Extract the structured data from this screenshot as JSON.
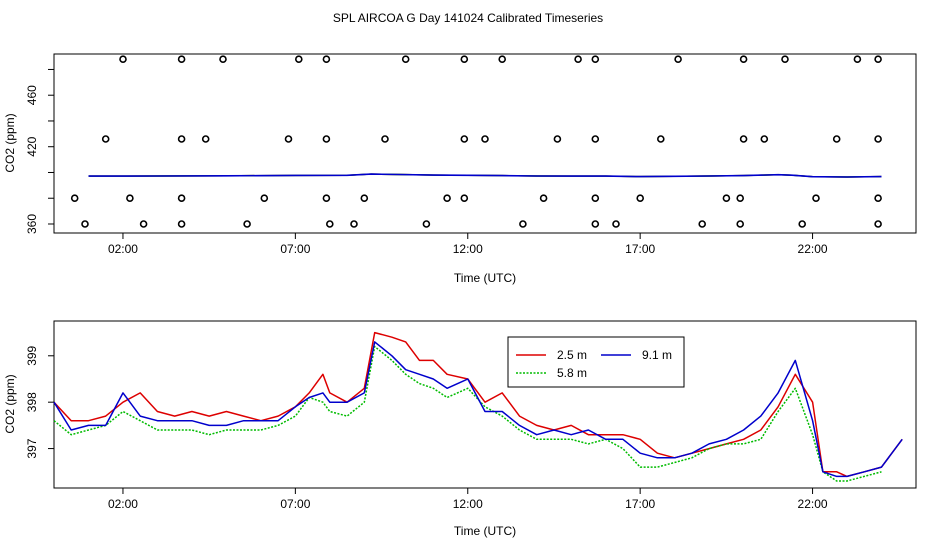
{
  "title": "SPL AIRCOA G  Day 141024  Calibrated Timeseries",
  "colors": {
    "s25": "#dd0000",
    "s58": "#00bb00",
    "s91": "#0000cc",
    "axis": "#000000"
  },
  "chart_data": [
    {
      "type": "scatter",
      "title": "",
      "xlabel": "Time (UTC)",
      "ylabel": "CO2 (ppm)",
      "xlim": [
        0,
        25
      ],
      "ylim": [
        353,
        492
      ],
      "x_ticks": [
        2,
        7,
        12,
        17,
        22
      ],
      "x_tick_labels": [
        "02:00",
        "07:00",
        "12:00",
        "17:00",
        "22:00"
      ],
      "y_ticks": [
        360,
        380,
        400,
        420,
        440,
        460,
        480
      ],
      "y_tick_labels": [
        "360",
        "",
        "",
        "420",
        "",
        "460",
        ""
      ],
      "grid": false,
      "markers_by_level": {
        "360": [
          0.9,
          2.6,
          3.7,
          5.6,
          8.0,
          8.7,
          10.8,
          13.6,
          15.7,
          16.3,
          18.8,
          19.9,
          21.7,
          23.9
        ],
        "380": [
          0.6,
          2.2,
          3.7,
          6.1,
          7.9,
          9.0,
          11.4,
          11.9,
          14.2,
          15.7,
          17.0,
          19.5,
          19.9,
          22.1,
          23.9
        ],
        "426": [
          1.5,
          3.7,
          4.4,
          6.8,
          7.9,
          9.6,
          11.9,
          12.5,
          14.6,
          15.7,
          17.6,
          20.0,
          20.6,
          22.7,
          23.9
        ],
        "488": [
          2.0,
          3.7,
          4.9,
          7.1,
          7.9,
          10.2,
          11.9,
          13.0,
          15.2,
          15.7,
          18.1,
          20.0,
          21.2,
          23.3,
          23.9
        ]
      },
      "series": [
        {
          "x": [
            1.0,
            3.0,
            5.0,
            7.0,
            8.5,
            9.2,
            10.0,
            11.0,
            12.0,
            13.0,
            14.0,
            15.0,
            16.0,
            17.0,
            18.0,
            19.0,
            20.0,
            21.0,
            21.4,
            22.0,
            23.0,
            24.0
          ],
          "values": [
            397.2,
            397.3,
            397.4,
            397.7,
            397.8,
            398.7,
            398.4,
            398.0,
            397.8,
            397.6,
            397.3,
            397.2,
            397.2,
            396.8,
            397.0,
            397.3,
            397.6,
            398.3,
            397.9,
            396.7,
            396.5,
            396.8
          ]
        }
      ]
    },
    {
      "type": "line",
      "title": "",
      "xlabel": "Time (UTC)",
      "ylabel": "CO2 (ppm)",
      "xlim": [
        0,
        25
      ],
      "ylim": [
        396.15,
        399.75
      ],
      "x_ticks": [
        2,
        7,
        12,
        17,
        22
      ],
      "x_tick_labels": [
        "02:00",
        "07:00",
        "12:00",
        "17:00",
        "22:00"
      ],
      "y_ticks": [
        397,
        398,
        399
      ],
      "y_tick_labels": [
        "397",
        "398",
        "399"
      ],
      "grid": false,
      "legend": {
        "placement": "top-center"
      },
      "series": [
        {
          "name": "2.5 m",
          "color_key": "s25",
          "x": [
            0.0,
            0.5,
            1.0,
            1.5,
            2.0,
            2.5,
            3.0,
            3.5,
            4.0,
            4.5,
            5.0,
            5.5,
            6.0,
            6.5,
            7.0,
            7.4,
            7.8,
            8.0,
            8.5,
            9.0,
            9.3,
            9.8,
            10.2,
            10.6,
            11.0,
            11.4,
            12.0,
            12.5,
            13.0,
            13.5,
            14.0,
            14.5,
            15.0,
            15.5,
            16.0,
            16.5,
            17.0,
            17.5,
            18.0,
            18.5,
            19.0,
            19.5,
            20.0,
            20.5,
            21.0,
            21.5,
            22.0,
            22.3,
            22.7,
            23.0,
            23.5,
            24.0,
            24.6
          ],
          "values": [
            398.0,
            397.6,
            397.6,
            397.7,
            398.0,
            398.2,
            397.8,
            397.7,
            397.8,
            397.7,
            397.8,
            397.7,
            397.6,
            397.7,
            397.9,
            398.2,
            398.6,
            398.2,
            398.0,
            398.3,
            399.5,
            399.4,
            399.3,
            398.9,
            398.9,
            398.6,
            398.5,
            398.0,
            398.2,
            397.7,
            397.5,
            397.4,
            397.5,
            397.3,
            397.3,
            397.3,
            397.2,
            396.9,
            396.8,
            396.9,
            397.0,
            397.1,
            397.2,
            397.4,
            397.9,
            398.6,
            398.0,
            396.5,
            396.5,
            396.4,
            396.5,
            396.6,
            397.2
          ]
        },
        {
          "name": "5.8 m",
          "color_key": "s58",
          "x": [
            0.0,
            0.5,
            1.0,
            1.5,
            2.0,
            2.5,
            3.0,
            3.5,
            4.0,
            4.5,
            5.0,
            5.5,
            6.0,
            6.5,
            7.0,
            7.4,
            7.8,
            8.0,
            8.5,
            9.0,
            9.3,
            9.8,
            10.2,
            10.6,
            11.0,
            11.4,
            12.0,
            12.5,
            13.0,
            13.5,
            14.0,
            14.5,
            15.0,
            15.5,
            16.0,
            16.5,
            17.0,
            17.5,
            18.0,
            18.5,
            19.0,
            19.5,
            20.0,
            20.5,
            21.0,
            21.5,
            22.0,
            22.3,
            22.7,
            23.0,
            23.5,
            24.0
          ],
          "values": [
            397.6,
            397.3,
            397.4,
            397.5,
            397.8,
            397.6,
            397.4,
            397.4,
            397.4,
            397.3,
            397.4,
            397.4,
            397.4,
            397.5,
            397.7,
            398.1,
            398.0,
            397.8,
            397.7,
            398.0,
            399.2,
            398.9,
            398.6,
            398.4,
            398.3,
            398.1,
            398.3,
            397.9,
            397.7,
            397.4,
            397.2,
            397.2,
            397.2,
            397.1,
            397.2,
            397.0,
            396.6,
            396.6,
            396.7,
            396.8,
            397.0,
            397.1,
            397.1,
            397.2,
            397.8,
            398.3,
            397.3,
            396.5,
            396.3,
            396.3,
            396.4,
            396.5
          ]
        },
        {
          "name": "9.1 m",
          "color_key": "s91",
          "x": [
            0.0,
            0.5,
            1.0,
            1.5,
            2.0,
            2.5,
            3.0,
            3.5,
            4.0,
            4.5,
            5.0,
            5.5,
            6.0,
            6.5,
            7.0,
            7.4,
            7.8,
            8.0,
            8.5,
            9.0,
            9.3,
            9.8,
            10.2,
            10.6,
            11.0,
            11.4,
            12.0,
            12.5,
            13.0,
            13.5,
            14.0,
            14.5,
            15.0,
            15.5,
            16.0,
            16.5,
            17.0,
            17.5,
            18.0,
            18.5,
            19.0,
            19.5,
            20.0,
            20.5,
            21.0,
            21.5,
            22.0,
            22.3,
            22.7,
            23.0,
            23.5,
            24.0,
            24.6
          ],
          "values": [
            398.0,
            397.4,
            397.5,
            397.5,
            398.2,
            397.7,
            397.6,
            397.6,
            397.6,
            397.5,
            397.5,
            397.6,
            397.6,
            397.6,
            397.9,
            398.1,
            398.2,
            398.0,
            398.0,
            398.2,
            399.3,
            399.0,
            398.7,
            398.6,
            398.5,
            398.3,
            398.5,
            397.8,
            397.8,
            397.5,
            397.3,
            397.4,
            397.3,
            397.4,
            397.2,
            397.2,
            396.9,
            396.8,
            396.8,
            396.9,
            397.1,
            397.2,
            397.4,
            397.7,
            398.2,
            398.9,
            397.6,
            396.5,
            396.4,
            396.4,
            396.5,
            396.6,
            397.2
          ]
        }
      ]
    }
  ]
}
